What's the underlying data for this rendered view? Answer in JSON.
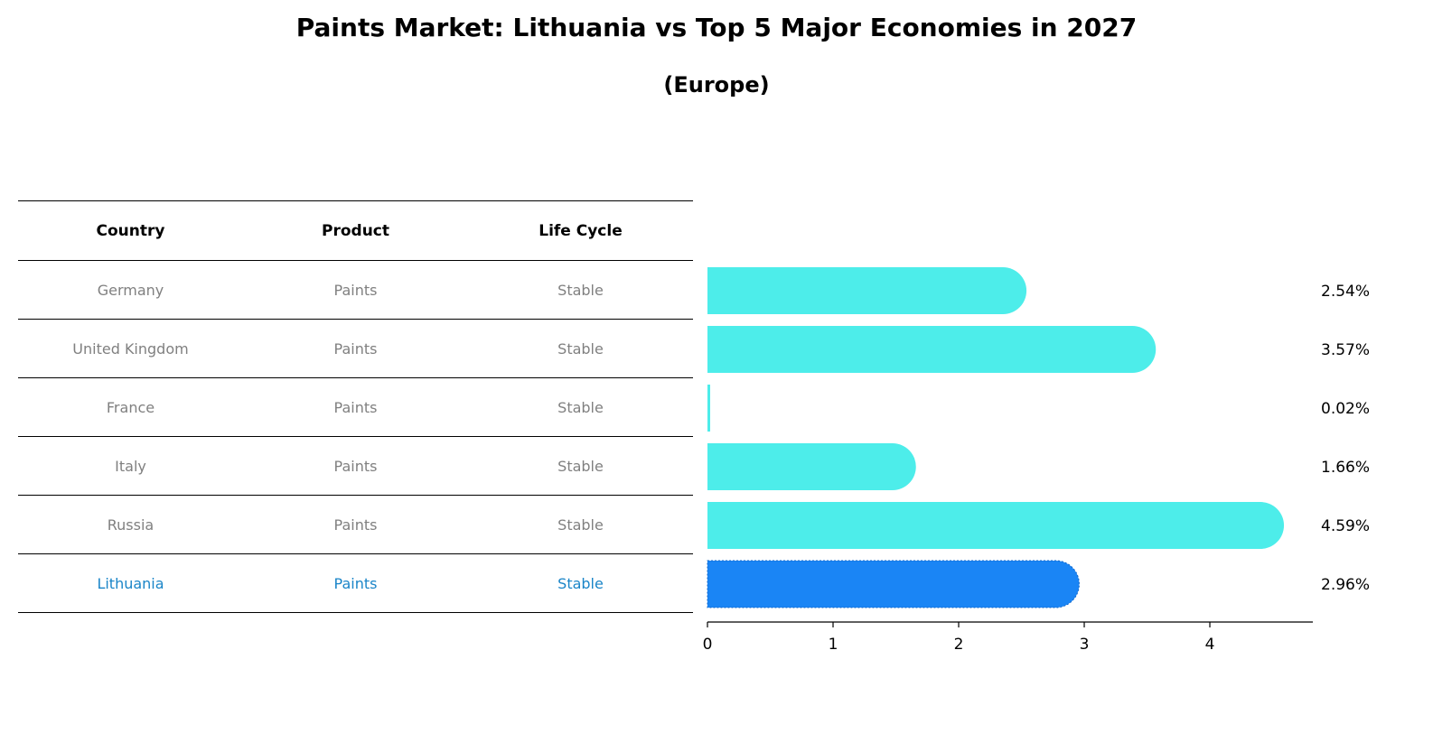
{
  "chart_data": {
    "type": "bar",
    "orientation": "horizontal",
    "title": "Paints Market: Lithuania vs Top 5 Major Economies in 2027",
    "subtitle": "(Europe)",
    "categories": [
      "Germany",
      "United Kingdom",
      "France",
      "Italy",
      "Russia",
      "Lithuania"
    ],
    "values": [
      2.54,
      3.57,
      0.02,
      1.66,
      4.59,
      2.96
    ],
    "value_labels": [
      "2.54%",
      "3.57%",
      "0.02%",
      "1.66%",
      "4.59%",
      "2.96%"
    ],
    "highlight": "Lithuania",
    "xlim": [
      0,
      4.82
    ],
    "xticks": [
      0,
      1,
      2,
      3,
      4
    ],
    "xlabel": "",
    "ylabel": "",
    "colors": {
      "bar": "#4DEDEA",
      "highlight_bar": "#1A85F5",
      "highlight_text": "#1A85C8",
      "muted_text": "#808080"
    }
  },
  "table": {
    "headers": [
      "Country",
      "Product",
      "Life Cycle"
    ],
    "rows": [
      [
        "Germany",
        "Paints",
        "Stable"
      ],
      [
        "United Kingdom",
        "Paints",
        "Stable"
      ],
      [
        "France",
        "Paints",
        "Stable"
      ],
      [
        "Italy",
        "Paints",
        "Stable"
      ],
      [
        "Russia",
        "Paints",
        "Stable"
      ],
      [
        "Lithuania",
        "Paints",
        "Stable"
      ]
    ]
  }
}
